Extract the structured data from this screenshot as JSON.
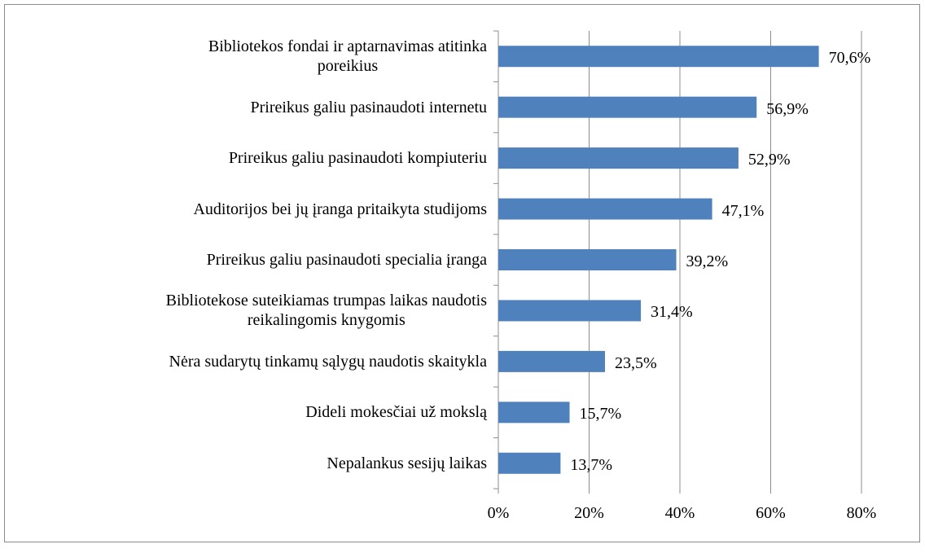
{
  "chart_data": {
    "type": "bar",
    "orientation": "horizontal",
    "categories": [
      "Bibliotekos fondai ir aptarnavimas atitinka\nporeikius",
      "Prireikus galiu pasinaudoti internetu",
      "Prireikus galiu pasinaudoti kompiuteriu",
      "Auditorijos bei jų įranga pritaikyta studijoms",
      "Prireikus galiu pasinaudoti specialia įranga",
      "Bibliotekose suteikiamas trumpas laikas naudotis\nreikalingomis knygomis",
      "Nėra sudarytų tinkamų sąlygų naudotis skaitykla",
      "Dideli mokesčiai už mokslą",
      "Nepalankus sesijų laikas"
    ],
    "values": [
      70.6,
      56.9,
      52.9,
      47.1,
      39.2,
      31.4,
      23.5,
      15.7,
      13.7
    ],
    "value_labels": [
      "70,6%",
      "56,9%",
      "52,9%",
      "47,1%",
      "39,2%",
      "31,4%",
      "23,5%",
      "15,7%",
      "13,7%"
    ],
    "color": "#4f81bd",
    "xlim": [
      0,
      80
    ],
    "xticks": [
      {
        "value": 0,
        "label": "0%"
      },
      {
        "value": 20,
        "label": "20%"
      },
      {
        "value": 40,
        "label": "40%"
      },
      {
        "value": 60,
        "label": "60%"
      },
      {
        "value": 80,
        "label": "80%"
      }
    ],
    "grid": true
  }
}
